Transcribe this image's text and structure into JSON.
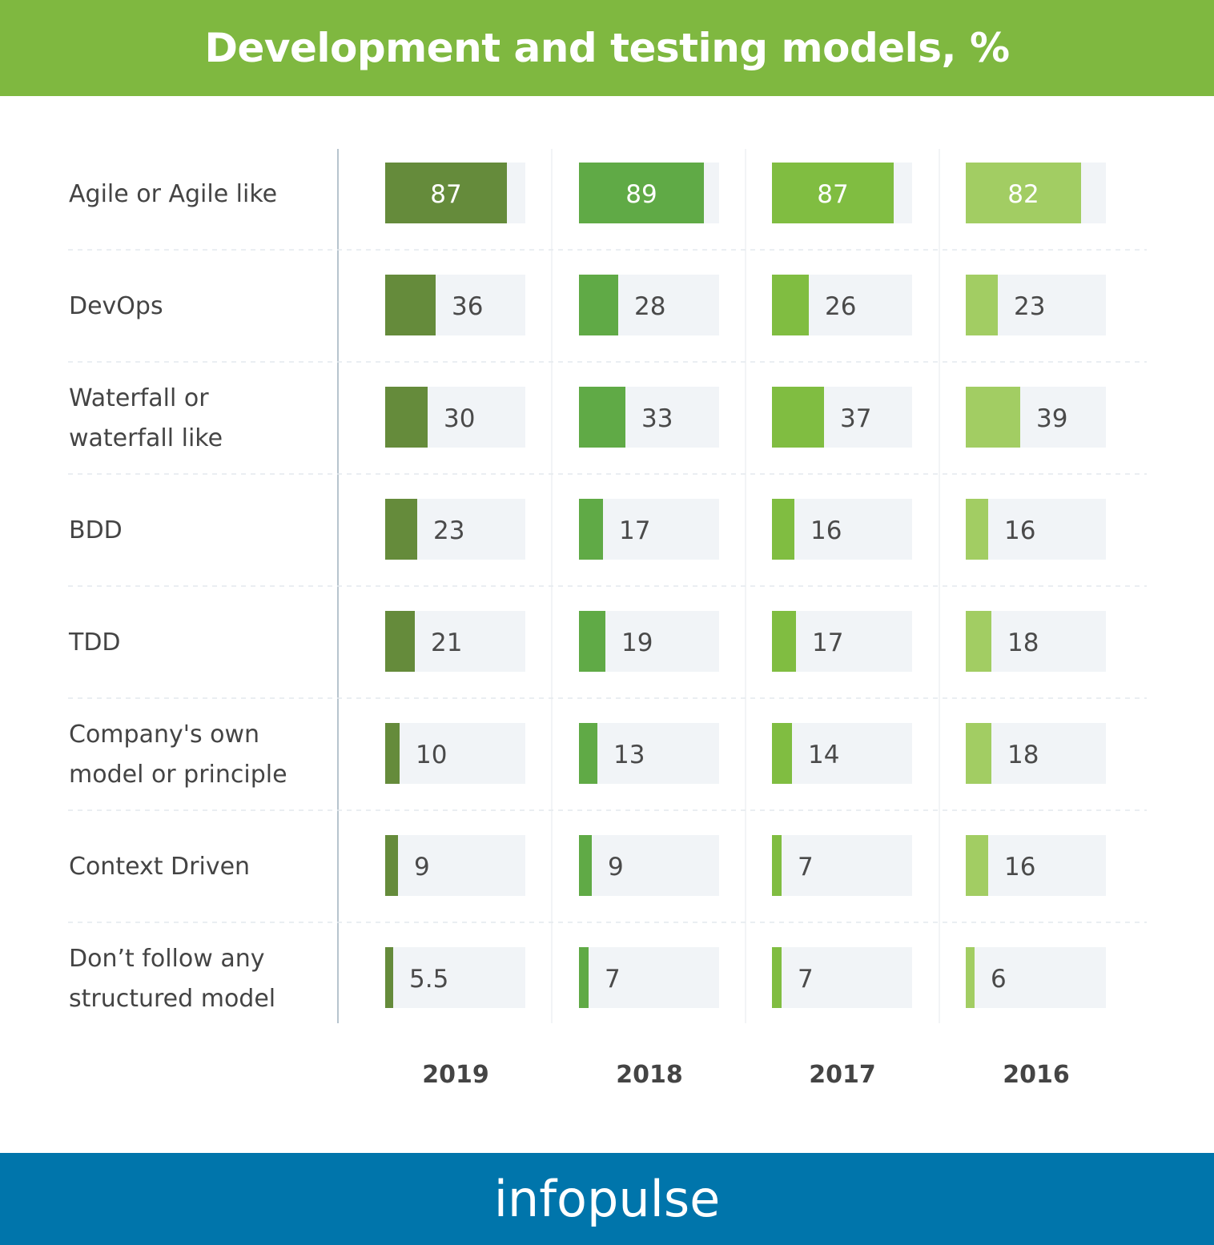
{
  "header": {
    "title": "Development and testing models, %"
  },
  "footer": {
    "brand": "infopulse"
  },
  "colors": {
    "header_bg": "#7fb840",
    "footer_bg": "#0075ab",
    "track": "#f1f4f7",
    "series": [
      "#658b3b",
      "#60aa46",
      "#80bd41",
      "#a2cd63"
    ]
  },
  "chart_data": {
    "type": "bar",
    "title": "Development and testing models, %",
    "xlabel": "",
    "ylabel": "",
    "ylim": [
      0,
      100
    ],
    "categories": [
      [
        "Agile or Agile like"
      ],
      [
        "DevOps"
      ],
      [
        "Waterfall or",
        "waterfall like"
      ],
      [
        "BDD"
      ],
      [
        "TDD"
      ],
      [
        "Company's own",
        "model or principle"
      ],
      [
        "Context Driven"
      ],
      [
        "Don’t follow any",
        "structured model"
      ]
    ],
    "series": [
      {
        "name": "2019",
        "values": [
          87,
          36,
          30,
          23,
          21,
          10,
          9,
          5.5
        ]
      },
      {
        "name": "2018",
        "values": [
          89,
          28,
          33,
          17,
          19,
          13,
          9,
          7
        ]
      },
      {
        "name": "2017",
        "values": [
          87,
          26,
          37,
          16,
          17,
          14,
          7,
          7
        ]
      },
      {
        "name": "2016",
        "values": [
          82,
          23,
          39,
          16,
          18,
          18,
          16,
          6
        ]
      }
    ]
  }
}
